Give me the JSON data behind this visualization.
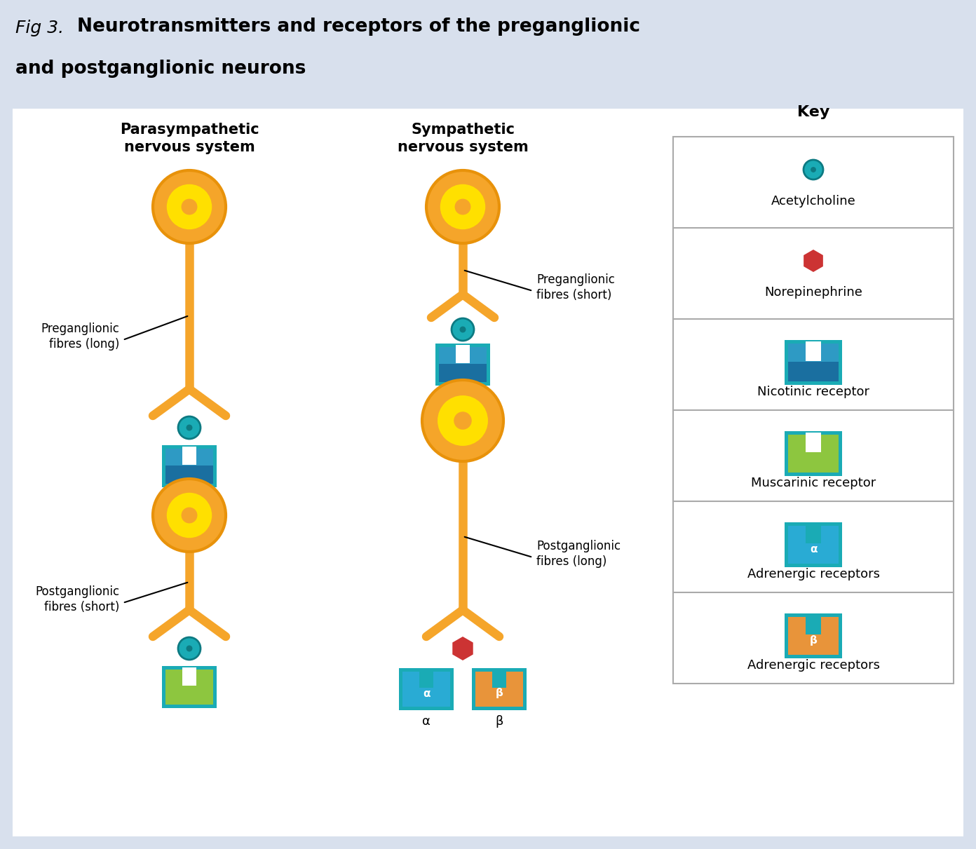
{
  "bg_color": "#d8e0ed",
  "panel_bg": "#ffffff",
  "orange": "#F5A52A",
  "yellow": "#FFE000",
  "orange_dark": "#E8920A",
  "teal": "#1AABB5",
  "teal_dark": "#0D7A82",
  "blue_receptor_outer": "#2E9AC4",
  "blue_receptor_inner": "#1A6FA0",
  "green_receptor": "#8DC63F",
  "cyan_receptor": "#29ABD4",
  "red_hex": "#CC3333",
  "orange_receptor": "#E8943A",
  "gray_border": "#aaaaaa",
  "title_prefix": "Fig 3.",
  "title_main": "Neurotransmitters and receptors of the preganglionic\nand postganglionic neurons",
  "para_title": "Parasympathetic\nnervous system",
  "symp_title": "Sympathetic\nnervous system",
  "key_title": "Key",
  "key_items": [
    "Acetylcholine",
    "Norepinephrine",
    "Nicotinic receptor",
    "Muscarinic receptor",
    "Adrenergic receptors",
    "Adrenergic receptors"
  ],
  "para_label1": "Preganglionic\nfibres (long)",
  "para_label2": "Postganglionic\nfibres (short)",
  "symp_label1": "Preganglionic\nfibres (short)",
  "symp_label2": "Postganglionic\nfibres (long)"
}
